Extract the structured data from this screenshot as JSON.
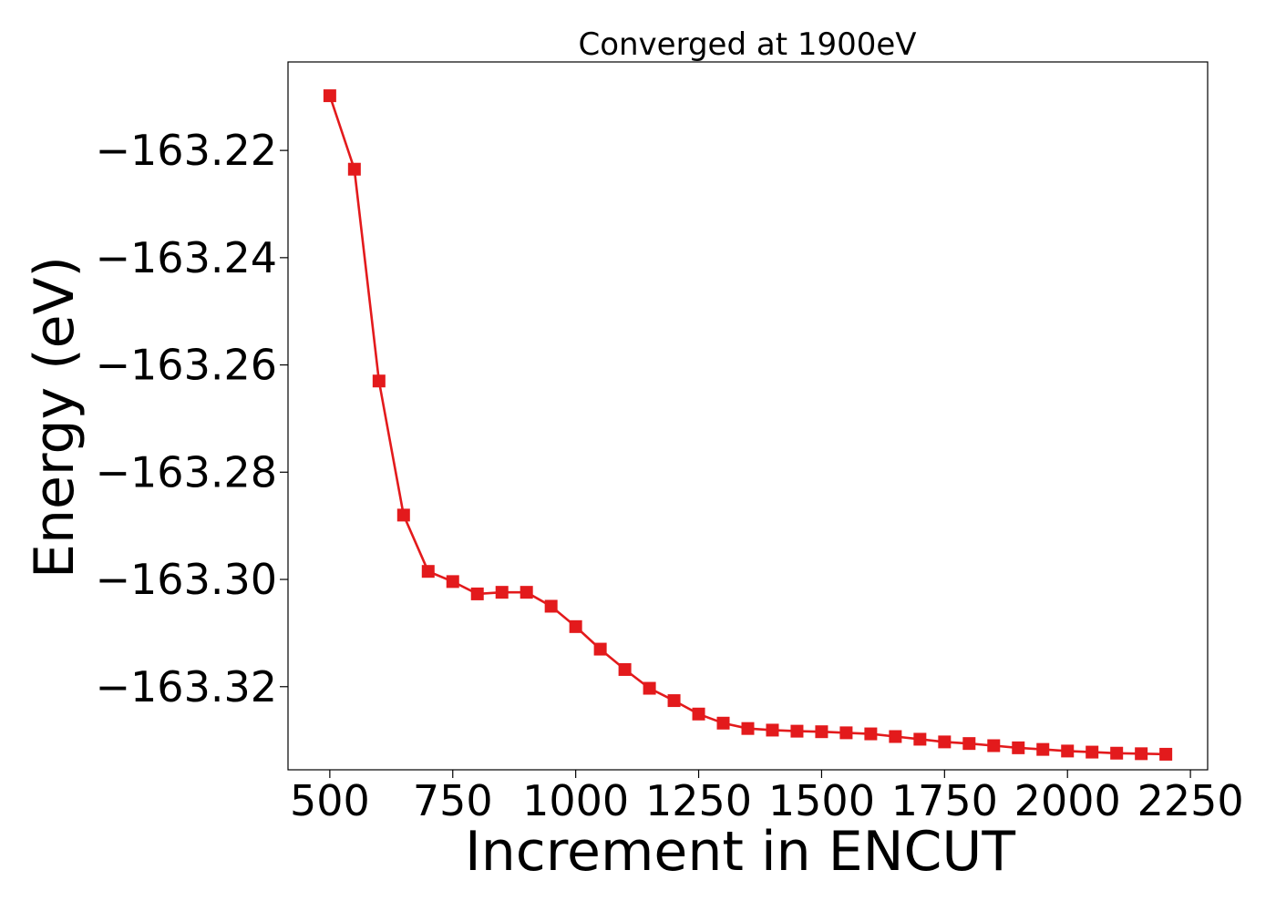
{
  "chart_data": {
    "type": "line",
    "title": "Converged at 1900eV",
    "xlabel": "Increment in ENCUT",
    "ylabel": "Energy (eV)",
    "xlim": [
      415,
      2285
    ],
    "ylim": [
      -163.3355,
      -163.2035
    ],
    "xticks": [
      500,
      750,
      1000,
      1250,
      1500,
      1750,
      2000,
      2250
    ],
    "yticks": [
      -163.22,
      -163.24,
      -163.26,
      -163.28,
      -163.3,
      -163.32
    ],
    "ytick_labels": [
      "−163.22",
      "−163.24",
      "−163.26",
      "−163.28",
      "−163.30",
      "−163.32"
    ],
    "grid": false,
    "series": [
      {
        "color": "#e31a1c",
        "marker": "square",
        "x": [
          500,
          550,
          600,
          650,
          700,
          750,
          800,
          850,
          900,
          950,
          1000,
          1050,
          1100,
          1150,
          1200,
          1250,
          1300,
          1350,
          1400,
          1450,
          1500,
          1550,
          1600,
          1650,
          1700,
          1750,
          1800,
          1850,
          1900,
          1950,
          2000,
          2050,
          2100,
          2150,
          2200
        ],
        "y": [
          -163.2098,
          -163.2235,
          -163.263,
          -163.288,
          -163.2985,
          -163.3004,
          -163.3027,
          -163.3024,
          -163.3024,
          -163.305,
          -163.3088,
          -163.313,
          -163.3168,
          -163.3203,
          -163.3226,
          -163.3251,
          -163.3268,
          -163.3278,
          -163.3281,
          -163.3283,
          -163.3284,
          -163.3286,
          -163.3288,
          -163.3293,
          -163.3298,
          -163.3303,
          -163.3306,
          -163.331,
          -163.3314,
          -163.3317,
          -163.332,
          -163.3322,
          -163.3324,
          -163.3325,
          -163.3326
        ]
      }
    ]
  }
}
